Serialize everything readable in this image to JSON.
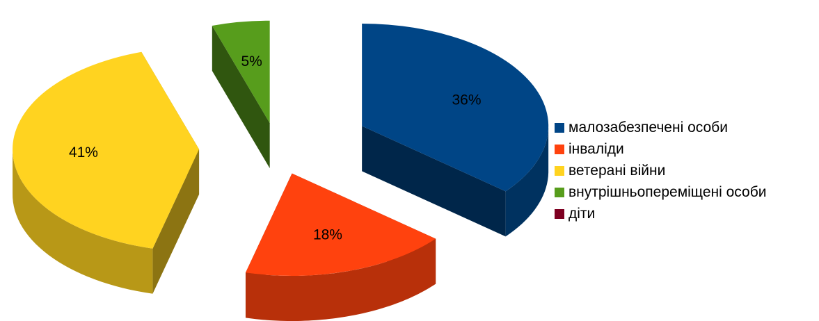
{
  "chart_data": {
    "type": "pie",
    "title": "",
    "categories": [
      "малозабезпечені особи",
      "інваліди",
      "ветерані війни",
      "внутрішньопереміщені особи",
      "діти"
    ],
    "values": [
      36,
      18,
      41,
      5,
      0
    ],
    "data_labels": [
      "36%",
      "18%",
      "41%",
      "5%",
      ""
    ],
    "colors": [
      "#004586",
      "#ff420e",
      "#ffd320",
      "#579d1c",
      "#7e0021"
    ],
    "legend_position": "right",
    "style": "3d-exploded"
  }
}
